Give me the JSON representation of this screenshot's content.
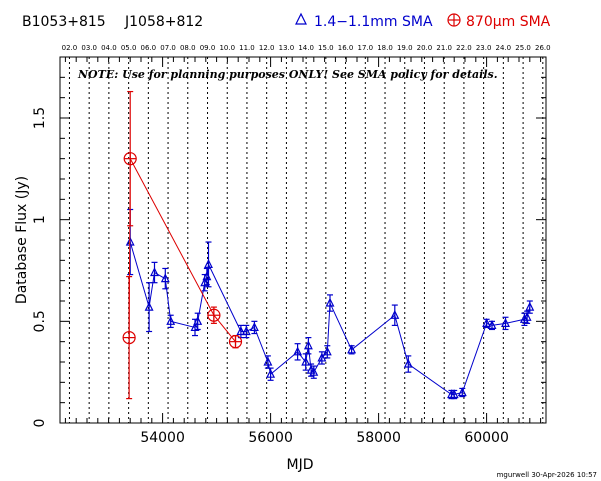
{
  "header": {
    "source_b1950": "B1053+815",
    "source_j2000": "J1058+812",
    "legend_blue": "1.4−1.1mm SMA",
    "legend_red": "870μm SMA"
  },
  "note": "NOTE: Use for planning purposes ONLY! See SMA policy for details.",
  "footer": "mgurwell 30-Apr-2026 10:57",
  "colors": {
    "blue": "#0000cc",
    "red": "#dd0000",
    "axis": "#000000"
  },
  "chart_data": {
    "type": "scatter",
    "xlabel": "MJD",
    "ylabel": "Database Flux (Jy)",
    "xlim": [
      52100,
      61100
    ],
    "ylim": [
      0,
      1.8
    ],
    "x_ticks": [
      54000,
      56000,
      58000,
      60000
    ],
    "y_ticks": [
      0,
      0.5,
      1,
      1.5
    ],
    "y_tick_labels": [
      "0",
      "0.5",
      "1",
      "1.5"
    ],
    "year_markers": [
      {
        "label": "02.0",
        "mjd": 52275
      },
      {
        "label": "03.0",
        "mjd": 52640
      },
      {
        "label": "04.0",
        "mjd": 53005
      },
      {
        "label": "05.0",
        "mjd": 53371
      },
      {
        "label": "06.0",
        "mjd": 53736
      },
      {
        "label": "07.0",
        "mjd": 54101
      },
      {
        "label": "08.0",
        "mjd": 54466
      },
      {
        "label": "09.0",
        "mjd": 54832
      },
      {
        "label": "10.0",
        "mjd": 55197
      },
      {
        "label": "11.0",
        "mjd": 55562
      },
      {
        "label": "12.0",
        "mjd": 55927
      },
      {
        "label": "13.0",
        "mjd": 56293
      },
      {
        "label": "14.0",
        "mjd": 56658
      },
      {
        "label": "15.0",
        "mjd": 57023
      },
      {
        "label": "16.0",
        "mjd": 57388
      },
      {
        "label": "17.0",
        "mjd": 57754
      },
      {
        "label": "18.0",
        "mjd": 58119
      },
      {
        "label": "19.0",
        "mjd": 58484
      },
      {
        "label": "20.0",
        "mjd": 58849
      },
      {
        "label": "21.0",
        "mjd": 59215
      },
      {
        "label": "22.0",
        "mjd": 59580
      },
      {
        "label": "23.0",
        "mjd": 59945
      },
      {
        "label": "24.0",
        "mjd": 60310
      },
      {
        "label": "25.0",
        "mjd": 60676
      },
      {
        "label": "26.0",
        "mjd": 61041
      }
    ],
    "series": [
      {
        "name": "1.4−1.1mm SMA",
        "color": "#0000cc",
        "marker": "triangle",
        "points": [
          {
            "x": 53400,
            "y": 0.89,
            "err": 0.16
          },
          {
            "x": 53750,
            "y": 0.57,
            "err": 0.12
          },
          {
            "x": 53850,
            "y": 0.74,
            "err": 0.05
          },
          {
            "x": 54050,
            "y": 0.71,
            "err": 0.05
          },
          {
            "x": 54150,
            "y": 0.5,
            "err": 0.03
          },
          {
            "x": 54600,
            "y": 0.47,
            "err": 0.04
          },
          {
            "x": 54650,
            "y": 0.5,
            "err": 0.04
          },
          {
            "x": 54780,
            "y": 0.69,
            "err": 0.04
          },
          {
            "x": 54820,
            "y": 0.72,
            "err": 0.04
          },
          {
            "x": 54850,
            "y": 0.78,
            "err": 0.11
          },
          {
            "x": 55450,
            "y": 0.45,
            "err": 0.03
          },
          {
            "x": 55550,
            "y": 0.45,
            "err": 0.03
          },
          {
            "x": 55700,
            "y": 0.47,
            "err": 0.03
          },
          {
            "x": 55950,
            "y": 0.3,
            "err": 0.03
          },
          {
            "x": 56000,
            "y": 0.24,
            "err": 0.03
          },
          {
            "x": 56500,
            "y": 0.35,
            "err": 0.04
          },
          {
            "x": 56650,
            "y": 0.3,
            "err": 0.04
          },
          {
            "x": 56700,
            "y": 0.38,
            "err": 0.04
          },
          {
            "x": 56750,
            "y": 0.26,
            "err": 0.03
          },
          {
            "x": 56800,
            "y": 0.25,
            "err": 0.03
          },
          {
            "x": 56950,
            "y": 0.32,
            "err": 0.03
          },
          {
            "x": 57050,
            "y": 0.35,
            "err": 0.03
          },
          {
            "x": 57100,
            "y": 0.59,
            "err": 0.04
          },
          {
            "x": 57500,
            "y": 0.36,
            "err": 0.02
          },
          {
            "x": 58300,
            "y": 0.53,
            "err": 0.05
          },
          {
            "x": 58550,
            "y": 0.29,
            "err": 0.04
          },
          {
            "x": 59350,
            "y": 0.14,
            "err": 0.02
          },
          {
            "x": 59400,
            "y": 0.14,
            "err": 0.02
          },
          {
            "x": 59550,
            "y": 0.15,
            "err": 0.02
          },
          {
            "x": 60000,
            "y": 0.49,
            "err": 0.02
          },
          {
            "x": 60100,
            "y": 0.48,
            "err": 0.02
          },
          {
            "x": 60350,
            "y": 0.49,
            "err": 0.03
          },
          {
            "x": 60700,
            "y": 0.51,
            "err": 0.03
          },
          {
            "x": 60750,
            "y": 0.52,
            "err": 0.03
          },
          {
            "x": 60800,
            "y": 0.57,
            "err": 0.03
          }
        ]
      },
      {
        "name": "870μm SMA",
        "color": "#dd0000",
        "marker": "circle-plus",
        "points": [
          {
            "x": 53380,
            "y": 0.42,
            "err": 0.3
          },
          {
            "x": 53400,
            "y": 1.3,
            "err": 0.33
          },
          {
            "x": 54950,
            "y": 0.53,
            "err": 0.04
          },
          {
            "x": 55350,
            "y": 0.4,
            "err": 0.03
          }
        ]
      }
    ]
  }
}
